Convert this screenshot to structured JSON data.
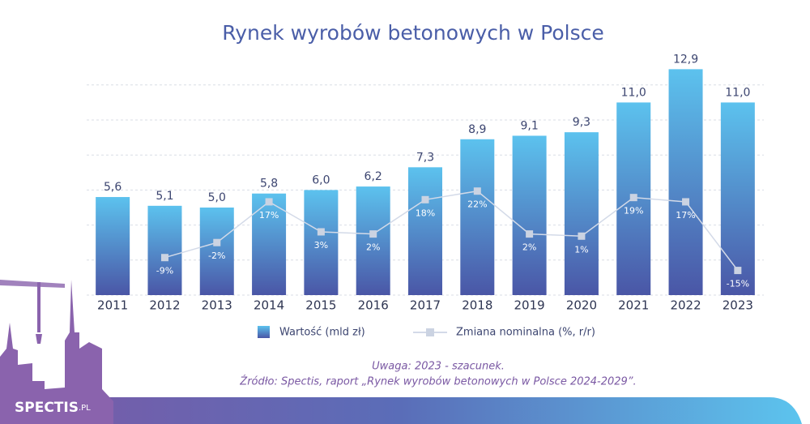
{
  "chart_data": {
    "type": "combo",
    "title": "Rynek wyrobów betonowych w Polsce",
    "categories": [
      "2011",
      "2012",
      "2013",
      "2014",
      "2015",
      "2016",
      "2017",
      "2018",
      "2019",
      "2020",
      "2021",
      "2022",
      "2023"
    ],
    "series": [
      {
        "name": "Wartość (mld zł)",
        "type": "bar",
        "color": "#4f63ad",
        "values": [
          5.6,
          5.1,
          5.0,
          5.8,
          6.0,
          6.2,
          7.3,
          8.9,
          9.1,
          9.3,
          11.0,
          12.9,
          11.0
        ],
        "value_labels": [
          "5,6",
          "5,1",
          "5,0",
          "5,8",
          "6,0",
          "6,2",
          "7,3",
          "8,9",
          "9,1",
          "9,3",
          "11,0",
          "12,9",
          "11,0"
        ]
      },
      {
        "name": "Zmiana nominalna (%, r/r)",
        "type": "line",
        "axis": "y2",
        "color": "#d3dae8",
        "values": [
          null,
          -9,
          -2,
          17,
          3,
          2,
          18,
          22,
          2,
          1,
          19,
          17,
          -15
        ],
        "value_labels": [
          null,
          "-9%",
          "-2%",
          "17%",
          "3%",
          "2%",
          "18%",
          "22%",
          "2%",
          "1%",
          "19%",
          "17%",
          "-15%"
        ]
      }
    ],
    "ylim": [
      0,
      15
    ],
    "yticks": [
      0,
      2,
      4,
      6,
      8,
      10,
      12
    ],
    "grid": true,
    "y2lim": [
      -26.5,
      96
    ],
    "notes": [
      "Uwaga: 2023 - szacunek.",
      "Źródło: Spectis, raport „Rynek wyrobów betonowych w Polsce 2024-2029”."
    ]
  },
  "logo": {
    "name": "SPECTIS",
    "suffix": ".PL"
  }
}
